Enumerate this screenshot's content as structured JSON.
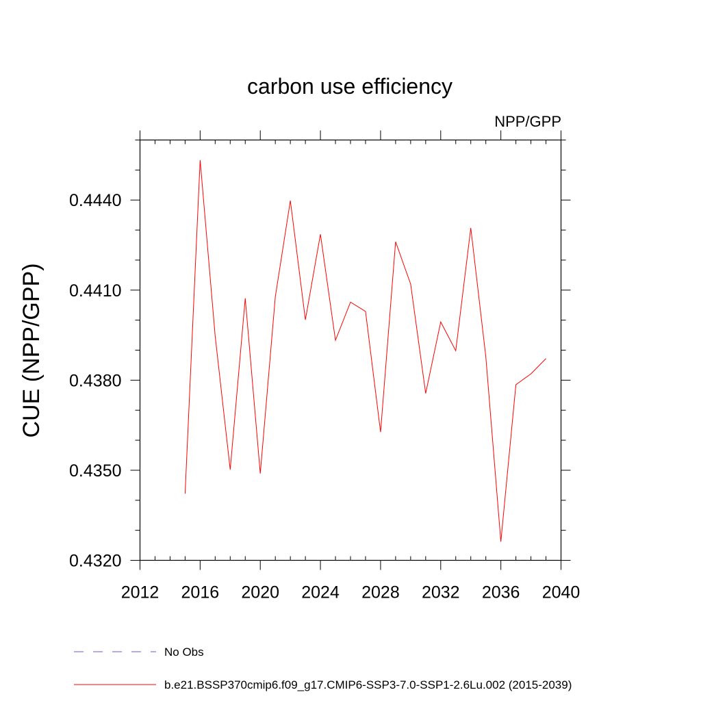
{
  "chart_data": {
    "type": "line",
    "title": "carbon use efficiency",
    "subtitle": "NPP/GPP",
    "xlabel": "",
    "ylabel": "CUE  (NPP/GPP)",
    "xlim": [
      2012,
      2040
    ],
    "ylim": [
      0.432,
      0.446
    ],
    "x_ticks": [
      "2012",
      "2016",
      "2020",
      "2024",
      "2028",
      "2032",
      "2036",
      "2040"
    ],
    "y_ticks": [
      "0.4320",
      "0.4350",
      "0.4380",
      "0.4410",
      "0.4440"
    ],
    "grid": false,
    "legend_position": "bottom",
    "series": [
      {
        "name": "b.e21.BSSP370cmip6.f09_g17.CMIP6-SSP3-7.0-SSP1-2.6Lu.002 (2015-2039)",
        "color": "#ff0000",
        "style": "solid",
        "x": [
          2015,
          2016,
          2017,
          2018,
          2019,
          2020,
          2021,
          2022,
          2023,
          2024,
          2025,
          2026,
          2027,
          2028,
          2029,
          2030,
          2031,
          2032,
          2033,
          2034,
          2035,
          2036,
          2037,
          2038,
          2039
        ],
        "y": [
          0.43422,
          0.44533,
          0.43947,
          0.43502,
          0.44073,
          0.43489,
          0.44078,
          0.44398,
          0.44001,
          0.44286,
          0.43933,
          0.4406,
          0.44029,
          0.43627,
          0.44261,
          0.4412,
          0.43756,
          0.43994,
          0.43898,
          0.44307,
          0.43878,
          0.43262,
          0.43785,
          0.43821,
          0.43872
        ]
      }
    ],
    "legend": [
      {
        "label": "No Obs",
        "color": "#6a5acd",
        "style": "dashed"
      },
      {
        "label": "b.e21.BSSP370cmip6.f09_g17.CMIP6-SSP3-7.0-SSP1-2.6Lu.002 (2015-2039)",
        "color": "#ff0000",
        "style": "solid"
      }
    ]
  }
}
